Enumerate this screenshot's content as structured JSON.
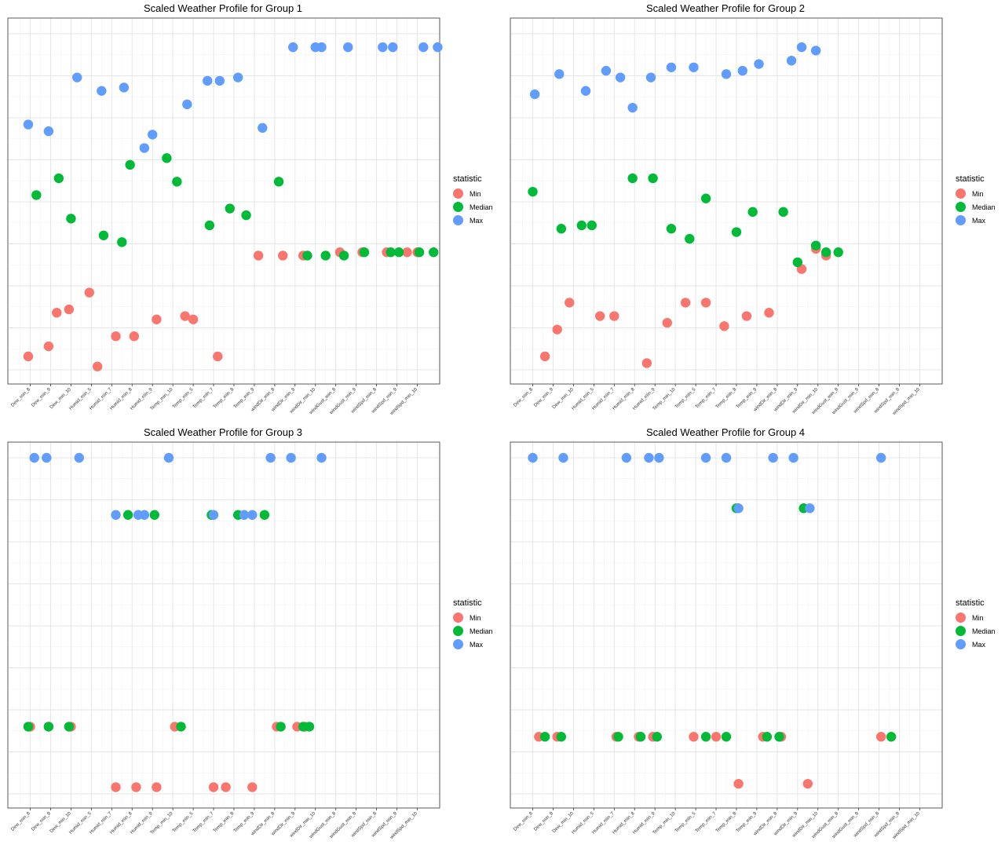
{
  "legend": {
    "title": "statistic",
    "items": [
      {
        "label": "Min",
        "color": "#F8766D"
      },
      {
        "label": "Median",
        "color": "#00BA38"
      },
      {
        "label": "Max",
        "color": "#619CFF"
      }
    ]
  },
  "chart_data": [
    {
      "type": "scatter",
      "title": "Scaled Weather Profile for Group 1",
      "xlabel": "",
      "ylabel": "",
      "grid": true,
      "legend_position": "right",
      "categories": [
        "Dew_min_8",
        "Dew_min_9",
        "Dew_min_10",
        "Humid_min_5",
        "Humid_min_7",
        "Humid_min_8",
        "Humid_min_9",
        "Temp_min_10",
        "Temp_min_5",
        "Temp_min_7",
        "Temp_min_8",
        "Temp_min_9",
        "windDir_min_8",
        "windDir_min_9",
        "windDir_min_10",
        "windGust_min_8",
        "windGust_min_9",
        "windSpd_min_8",
        "windSpd_min_9",
        "windSpd_min_10"
      ],
      "ylim": [
        0,
        1
      ],
      "series": [
        {
          "name": "Min",
          "color": "#F8766D",
          "points": [
            [
              0.9,
              0.04
            ],
            [
              1.9,
              0.07
            ],
            [
              2.3,
              0.17
            ],
            [
              2.9,
              0.18
            ],
            [
              3.9,
              0.23
            ],
            [
              4.3,
              0.01
            ],
            [
              5.2,
              0.1
            ],
            [
              6.1,
              0.1
            ],
            [
              7.2,
              0.15
            ],
            [
              8.6,
              0.16
            ],
            [
              9,
              0.15
            ],
            [
              10.2,
              0.04
            ],
            [
              12.2,
              0.34
            ],
            [
              13.4,
              0.34
            ],
            [
              14.4,
              0.34
            ],
            [
              16.2,
              0.35
            ],
            [
              17.3,
              0.35
            ],
            [
              18.5,
              0.35
            ],
            [
              19.5,
              0.35
            ],
            [
              20,
              0.35
            ]
          ]
        },
        {
          "name": "Median",
          "color": "#00BA38",
          "points": [
            [
              1.3,
              0.52
            ],
            [
              2.4,
              0.57
            ],
            [
              3,
              0.45
            ],
            [
              4.6,
              0.4
            ],
            [
              5.5,
              0.38
            ],
            [
              5.9,
              0.61
            ],
            [
              7.7,
              0.63
            ],
            [
              8.2,
              0.56
            ],
            [
              9.8,
              0.43
            ],
            [
              10.8,
              0.48
            ],
            [
              11.6,
              0.46
            ],
            [
              13.2,
              0.56
            ],
            [
              14.6,
              0.34
            ],
            [
              15.5,
              0.34
            ],
            [
              16.4,
              0.34
            ],
            [
              17.4,
              0.35
            ],
            [
              18.7,
              0.35
            ],
            [
              19.1,
              0.35
            ],
            [
              20.1,
              0.35
            ],
            [
              20.8,
              0.35
            ]
          ]
        },
        {
          "name": "Max",
          "color": "#619CFF",
          "points": [
            [
              0.9,
              0.73
            ],
            [
              1.9,
              0.71
            ],
            [
              3.3,
              0.87
            ],
            [
              4.5,
              0.83
            ],
            [
              5.6,
              0.84
            ],
            [
              6.6,
              0.66
            ],
            [
              7,
              0.7
            ],
            [
              8.7,
              0.79
            ],
            [
              9.7,
              0.86
            ],
            [
              10.3,
              0.86
            ],
            [
              11.2,
              0.87
            ],
            [
              12.4,
              0.72
            ],
            [
              13.9,
              0.96
            ],
            [
              15,
              0.96
            ],
            [
              15.3,
              0.96
            ],
            [
              16.6,
              0.96
            ],
            [
              18.3,
              0.96
            ],
            [
              18.8,
              0.96
            ],
            [
              20.3,
              0.96
            ],
            [
              21,
              0.96
            ]
          ]
        }
      ]
    },
    {
      "type": "scatter",
      "title": "Scaled Weather Profile for Group 2",
      "xlabel": "",
      "ylabel": "",
      "grid": true,
      "legend_position": "right",
      "categories": [
        "Dew_min_8",
        "Dew_min_9",
        "Dew_min_10",
        "Humid_min_5",
        "Humid_min_7",
        "Humid_min_8",
        "Humid_min_9",
        "Temp_min_10",
        "Temp_min_5",
        "Temp_min_7",
        "Temp_min_8",
        "Temp_min_9",
        "windDir_min_8",
        "windDir_min_9",
        "windDir_min_10",
        "windGust_min_8",
        "windGust_min_9",
        "windSpd_min_8",
        "windSpd_min_9",
        "windSpd_min_10"
      ],
      "ylim": [
        0,
        1
      ],
      "series": [
        {
          "name": "Min",
          "color": "#F8766D",
          "points": [
            [
              1.6,
              0.04
            ],
            [
              2.2,
              0.12
            ],
            [
              2.8,
              0.2
            ],
            [
              4.3,
              0.16
            ],
            [
              5,
              0.16
            ],
            [
              6.6,
              0.02
            ],
            [
              7.6,
              0.14
            ],
            [
              8.5,
              0.2
            ],
            [
              9.5,
              0.2
            ],
            [
              10.4,
              0.13
            ],
            [
              11.5,
              0.16
            ],
            [
              12.6,
              0.17
            ],
            [
              14.2,
              0.3
            ],
            [
              14.9,
              0.36
            ],
            [
              15.4,
              0.34
            ]
          ]
        },
        {
          "name": "Median",
          "color": "#00BA38",
          "points": [
            [
              1,
              0.53
            ],
            [
              2.4,
              0.42
            ],
            [
              3.4,
              0.43
            ],
            [
              3.9,
              0.43
            ],
            [
              5.9,
              0.57
            ],
            [
              6.9,
              0.57
            ],
            [
              7.8,
              0.42
            ],
            [
              8.7,
              0.39
            ],
            [
              9.5,
              0.51
            ],
            [
              11,
              0.41
            ],
            [
              11.8,
              0.47
            ],
            [
              13.3,
              0.47
            ],
            [
              14,
              0.32
            ],
            [
              14.9,
              0.37
            ],
            [
              15.4,
              0.35
            ],
            [
              16,
              0.35
            ]
          ]
        },
        {
          "name": "Max",
          "color": "#619CFF",
          "points": [
            [
              1.1,
              0.82
            ],
            [
              2.3,
              0.88
            ],
            [
              3.6,
              0.83
            ],
            [
              4.6,
              0.89
            ],
            [
              5.3,
              0.87
            ],
            [
              5.9,
              0.78
            ],
            [
              6.8,
              0.87
            ],
            [
              7.8,
              0.9
            ],
            [
              8.9,
              0.9
            ],
            [
              10.5,
              0.88
            ],
            [
              11.3,
              0.89
            ],
            [
              12.1,
              0.91
            ],
            [
              13.7,
              0.92
            ],
            [
              14.2,
              0.96
            ],
            [
              14.9,
              0.95
            ]
          ]
        }
      ]
    },
    {
      "type": "scatter",
      "title": "Scaled Weather Profile for Group 3",
      "xlabel": "",
      "ylabel": "",
      "grid": true,
      "legend_position": "right",
      "categories": [
        "Dew_min_8",
        "Dew_min_9",
        "Dew_min_10",
        "Humid_min_5",
        "Humid_min_7",
        "Humid_min_8",
        "Humid_min_9",
        "Temp_min_10",
        "Temp_min_5",
        "Temp_min_7",
        "Temp_min_8",
        "Temp_min_9",
        "windDir_min_8",
        "windDir_min_9",
        "windDir_min_10",
        "windGust_min_8",
        "windGust_min_9",
        "windSpd_min_8",
        "windSpd_min_9",
        "windSpd_min_10"
      ],
      "ylim": [
        0,
        1
      ],
      "series": [
        {
          "name": "Min",
          "color": "#F8766D",
          "points": [
            [
              1,
              0.2
            ],
            [
              1.9,
              0.2
            ],
            [
              3,
              0.2
            ],
            [
              5.2,
              0.02
            ],
            [
              6.2,
              0.02
            ],
            [
              7.2,
              0.02
            ],
            [
              8.1,
              0.2
            ],
            [
              10,
              0.02
            ],
            [
              10.6,
              0.02
            ],
            [
              11.9,
              0.02
            ],
            [
              13.1,
              0.2
            ],
            [
              14.1,
              0.2
            ],
            [
              14.5,
              0.2
            ]
          ]
        },
        {
          "name": "Median",
          "color": "#00BA38",
          "points": [
            [
              0.9,
              0.2
            ],
            [
              1.9,
              0.2
            ],
            [
              2.9,
              0.2
            ],
            [
              5.8,
              0.83
            ],
            [
              7.1,
              0.83
            ],
            [
              8.4,
              0.2
            ],
            [
              9.9,
              0.83
            ],
            [
              11.2,
              0.83
            ],
            [
              12.5,
              0.83
            ],
            [
              13.3,
              0.2
            ],
            [
              14.4,
              0.2
            ],
            [
              14.7,
              0.2
            ]
          ]
        },
        {
          "name": "Max",
          "color": "#619CFF",
          "points": [
            [
              1.2,
              1
            ],
            [
              1.8,
              1
            ],
            [
              3.4,
              1
            ],
            [
              5.2,
              0.83
            ],
            [
              6.3,
              0.83
            ],
            [
              6.6,
              0.83
            ],
            [
              7.8,
              1
            ],
            [
              10,
              0.83
            ],
            [
              11.5,
              0.83
            ],
            [
              11.9,
              0.83
            ],
            [
              12.8,
              1
            ],
            [
              13.8,
              1
            ],
            [
              15.3,
              1
            ]
          ]
        }
      ]
    },
    {
      "type": "scatter",
      "title": "Scaled Weather Profile for Group 4",
      "xlabel": "",
      "ylabel": "",
      "grid": true,
      "legend_position": "right",
      "categories": [
        "Dew_min_8",
        "Dew_min_9",
        "Dew_min_10",
        "Humid_min_5",
        "Humid_min_7",
        "Humid_min_8",
        "Humid_min_9",
        "Temp_min_10",
        "Temp_min_5",
        "Temp_min_7",
        "Temp_min_8",
        "Temp_min_9",
        "windDir_min_8",
        "windDir_min_9",
        "windDir_min_10",
        "windGust_min_8",
        "windGust_min_9",
        "windSpd_min_8",
        "windSpd_min_9",
        "windSpd_min_10"
      ],
      "ylim": [
        0,
        1
      ],
      "series": [
        {
          "name": "Min",
          "color": "#F8766D",
          "points": [
            [
              1.3,
              0.17
            ],
            [
              2.2,
              0.17
            ],
            [
              5.1,
              0.17
            ],
            [
              6.2,
              0.17
            ],
            [
              6.9,
              0.17
            ],
            [
              8.9,
              0.17
            ],
            [
              10,
              0.17
            ],
            [
              11.1,
              0.03
            ],
            [
              12.3,
              0.17
            ],
            [
              13.2,
              0.17
            ],
            [
              14.5,
              0.03
            ],
            [
              18.1,
              0.17
            ]
          ]
        },
        {
          "name": "Median",
          "color": "#00BA38",
          "points": [
            [
              1.6,
              0.17
            ],
            [
              2.4,
              0.17
            ],
            [
              5.2,
              0.17
            ],
            [
              6.3,
              0.17
            ],
            [
              7.1,
              0.17
            ],
            [
              9.5,
              0.17
            ],
            [
              10.5,
              0.17
            ],
            [
              11,
              0.85
            ],
            [
              12.5,
              0.17
            ],
            [
              13.1,
              0.17
            ],
            [
              14.3,
              0.85
            ],
            [
              18.6,
              0.17
            ]
          ]
        },
        {
          "name": "Max",
          "color": "#619CFF",
          "points": [
            [
              1,
              1
            ],
            [
              2.5,
              1
            ],
            [
              5.6,
              1
            ],
            [
              6.7,
              1
            ],
            [
              7.2,
              1
            ],
            [
              9.5,
              1
            ],
            [
              10.5,
              1
            ],
            [
              11.1,
              0.85
            ],
            [
              12.8,
              1
            ],
            [
              13.8,
              1
            ],
            [
              14.6,
              0.85
            ],
            [
              18.1,
              1
            ]
          ]
        }
      ]
    }
  ]
}
